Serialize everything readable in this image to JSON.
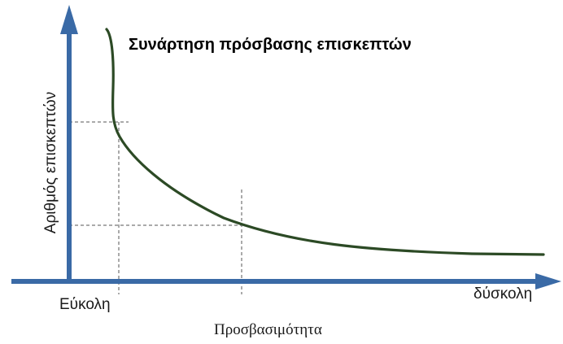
{
  "diagram": {
    "title": "Συνάρτηση πρόσβασης επισκεπτών",
    "y_axis_label": "Αριθμός επισκεπτών",
    "x_axis_label": "Προσβασιμότητα",
    "x_axis_start_label": "Εύκολη",
    "x_axis_end_label": "δύσκολη"
  },
  "colors": {
    "axis": "#3a6aa6",
    "curve": "#2c4a25",
    "guide": "#555555",
    "text": "#1a1a1a"
  }
}
